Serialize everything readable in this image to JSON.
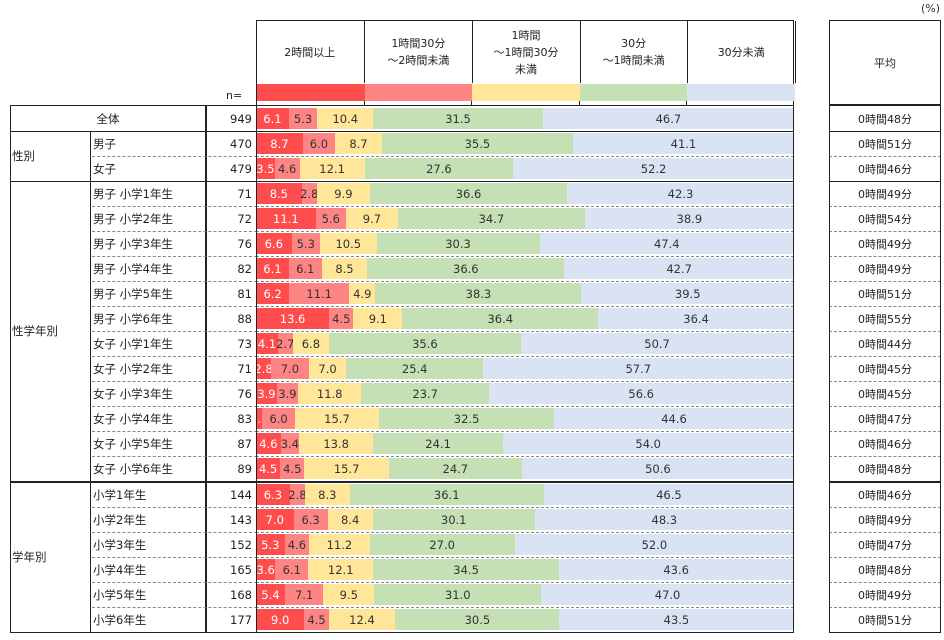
{
  "unit_label": "(%)",
  "n_label": "n=",
  "average_header": "平均",
  "colors": [
    "#ff4d4d",
    "#ff8585",
    "#ffe699",
    "#c5e0b4",
    "#dae3f3"
  ],
  "chart_data": {
    "type": "bar",
    "orientation": "horizontal-stacked-100",
    "title": "",
    "unit": "%",
    "legend": [
      "2時間以上",
      "1時間30分\n～2時間未満",
      "1時間\n～1時間30分\n未満",
      "30分\n～1時間未満",
      "30分未満"
    ],
    "legend_placement": "top",
    "xlim": [
      0,
      100
    ],
    "groups": [
      {
        "name": "全体",
        "rows": [
          0
        ]
      },
      {
        "name": "性別",
        "rows": [
          1,
          2
        ]
      },
      {
        "name": "性学年別",
        "rows": [
          3,
          4,
          5,
          6,
          7,
          8,
          9,
          10,
          11,
          12,
          13,
          14
        ]
      },
      {
        "name": "学年別",
        "rows": [
          15,
          16,
          17,
          18,
          19,
          20
        ]
      }
    ],
    "rows": [
      {
        "label": "全体",
        "n": "949",
        "values": [
          6.1,
          5.3,
          10.4,
          31.5,
          46.7
        ],
        "avg": "0時間48分"
      },
      {
        "label": "男子",
        "n": "470",
        "values": [
          8.7,
          6.0,
          8.7,
          35.5,
          41.1
        ],
        "avg": "0時間51分"
      },
      {
        "label": "女子",
        "n": "479",
        "values": [
          3.5,
          4.6,
          12.1,
          27.6,
          52.2
        ],
        "avg": "0時間46分"
      },
      {
        "label": "男子  小学1年生",
        "n": "71",
        "values": [
          8.5,
          2.8,
          9.9,
          36.6,
          42.3
        ],
        "avg": "0時間49分"
      },
      {
        "label": "男子  小学2年生",
        "n": "72",
        "values": [
          11.1,
          5.6,
          9.7,
          34.7,
          38.9
        ],
        "avg": "0時間54分"
      },
      {
        "label": "男子  小学3年生",
        "n": "76",
        "values": [
          6.6,
          5.3,
          10.5,
          30.3,
          47.4
        ],
        "avg": "0時間49分"
      },
      {
        "label": "男子  小学4年生",
        "n": "82",
        "values": [
          6.1,
          6.1,
          8.5,
          36.6,
          42.7
        ],
        "avg": "0時間49分"
      },
      {
        "label": "男子  小学5年生",
        "n": "81",
        "values": [
          6.2,
          11.1,
          4.9,
          38.3,
          39.5
        ],
        "avg": "0時間51分"
      },
      {
        "label": "男子  小学6年生",
        "n": "88",
        "values": [
          13.6,
          4.5,
          9.1,
          36.4,
          36.4
        ],
        "avg": "0時間55分"
      },
      {
        "label": "女子  小学1年生",
        "n": "73",
        "values": [
          4.1,
          2.7,
          6.8,
          35.6,
          50.7
        ],
        "avg": "0時間44分"
      },
      {
        "label": "女子  小学2年生",
        "n": "71",
        "values": [
          2.8,
          7.0,
          7.0,
          25.4,
          57.7
        ],
        "avg": "0時間45分"
      },
      {
        "label": "女子  小学3年生",
        "n": "76",
        "values": [
          3.9,
          3.9,
          11.8,
          23.7,
          56.6
        ],
        "avg": "0時間45分"
      },
      {
        "label": "女子  小学4年生",
        "n": "83",
        "values": [
          1.2,
          6.0,
          15.7,
          32.5,
          44.6
        ],
        "avg": "0時間47分"
      },
      {
        "label": "女子  小学5年生",
        "n": "87",
        "values": [
          4.6,
          3.4,
          13.8,
          24.1,
          54.0
        ],
        "avg": "0時間46分"
      },
      {
        "label": "女子  小学6年生",
        "n": "89",
        "values": [
          4.5,
          4.5,
          15.7,
          24.7,
          50.6
        ],
        "avg": "0時間48分"
      },
      {
        "label": "小学1年生",
        "n": "144",
        "values": [
          6.3,
          2.8,
          8.3,
          36.1,
          46.5
        ],
        "avg": "0時間46分"
      },
      {
        "label": "小学2年生",
        "n": "143",
        "values": [
          7.0,
          6.3,
          8.4,
          30.1,
          48.3
        ],
        "avg": "0時間49分"
      },
      {
        "label": "小学3年生",
        "n": "152",
        "values": [
          5.3,
          4.6,
          11.2,
          27.0,
          52.0
        ],
        "avg": "0時間47分"
      },
      {
        "label": "小学4年生",
        "n": "165",
        "values": [
          3.6,
          6.1,
          12.1,
          34.5,
          43.6
        ],
        "avg": "0時間48分"
      },
      {
        "label": "小学5年生",
        "n": "168",
        "values": [
          5.4,
          7.1,
          9.5,
          31.0,
          47.0
        ],
        "avg": "0時間49分"
      },
      {
        "label": "小学6年生",
        "n": "177",
        "values": [
          9.0,
          4.5,
          12.4,
          30.5,
          43.5
        ],
        "avg": "0時間51分"
      }
    ]
  }
}
